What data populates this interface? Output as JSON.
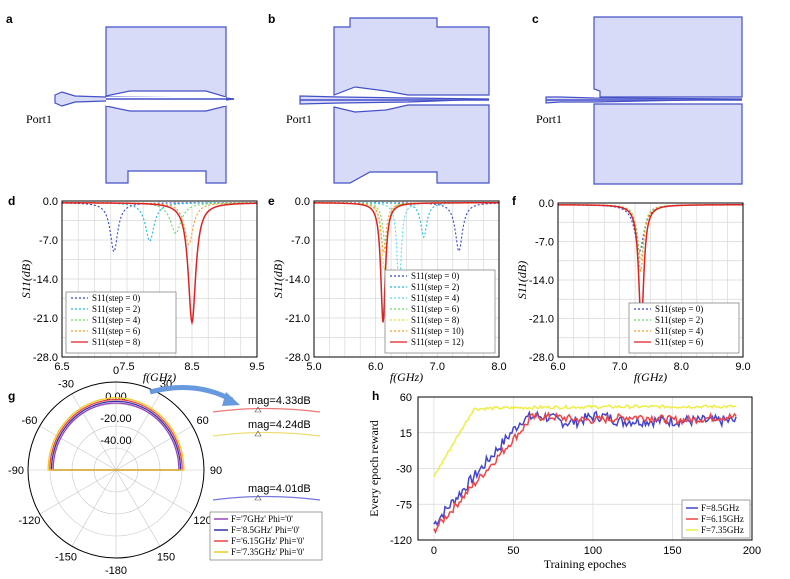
{
  "panels": {
    "a": "a",
    "b": "b",
    "c": "c",
    "d": "d",
    "e": "e",
    "f": "f",
    "g": "g",
    "h": "h"
  },
  "port_label": "Port1",
  "chart_data": [
    {
      "id": "d",
      "type": "line",
      "xlabel": "f(GHz)",
      "ylabel": "S11(dB)",
      "xlim": [
        6.5,
        9.5
      ],
      "ylim": [
        -28.0,
        0.0
      ],
      "xticks": [
        "6.5",
        "7.5",
        "8.5",
        "9.5"
      ],
      "yticks": [
        "0.0",
        "-7.0",
        "-14.0",
        "-21.0",
        "-28.0"
      ],
      "legend_position": "bottom-left",
      "series": [
        {
          "name": "S11(step = 0)",
          "color": "#3344cc",
          "dash": "2,2",
          "f0": 7.3,
          "depth": -8.8,
          "width": 0.07
        },
        {
          "name": "S11(step = 2)",
          "color": "#22bbdd",
          "dash": "2,2",
          "f0": 7.85,
          "depth": -6.9,
          "width": 0.08
        },
        {
          "name": "S11(step = 4)",
          "color": "#66dd66",
          "dash": "2,2",
          "f0": 8.25,
          "depth": -5.5,
          "width": 0.1
        },
        {
          "name": "S11(step = 6)",
          "color": "#ff9922",
          "dash": "2,2",
          "f0": 8.45,
          "depth": -7.5,
          "width": 0.08
        },
        {
          "name": "S11(step = 8)",
          "color": "#dd2222",
          "dash": "",
          "f0": 8.5,
          "depth": -21.5,
          "width": 0.07
        }
      ]
    },
    {
      "id": "e",
      "type": "line",
      "xlabel": "f(GHz)",
      "ylabel": "S11(dB)",
      "xlim": [
        5.0,
        8.0
      ],
      "ylim": [
        -28.0,
        0.0
      ],
      "xticks": [
        "5.0",
        "6.0",
        "7.0",
        "8.0"
      ],
      "yticks": [
        "0.0",
        "-7.0",
        "-14.0",
        "-21.0",
        "-28.0"
      ],
      "legend_position": "bottom-right",
      "series": [
        {
          "name": "S11(step = 0)",
          "color": "#3344cc",
          "dash": "2,2",
          "f0": 7.35,
          "depth": -8.7,
          "width": 0.07
        },
        {
          "name": "S11(step = 2)",
          "color": "#22bbdd",
          "dash": "2,2",
          "f0": 6.78,
          "depth": -6.2,
          "width": 0.06
        },
        {
          "name": "S11(step = 4)",
          "color": "#55ddee",
          "dash": "2,2",
          "f0": 6.38,
          "depth": -16.0,
          "width": 0.04
        },
        {
          "name": "S11(step = 6)",
          "color": "#66dd66",
          "dash": "2,2",
          "f0": 6.16,
          "depth": -8.0,
          "width": 0.05
        },
        {
          "name": "S11(step = 8)",
          "color": "#dddd33",
          "dash": "2,2",
          "f0": 6.14,
          "depth": -12.0,
          "width": 0.05
        },
        {
          "name": "S11(step = 10)",
          "color": "#ff9922",
          "dash": "2,2",
          "f0": 6.13,
          "depth": -9.0,
          "width": 0.05
        },
        {
          "name": "S11(step = 12)",
          "color": "#dd2222",
          "dash": "",
          "f0": 6.12,
          "depth": -21.5,
          "width": 0.045
        }
      ]
    },
    {
      "id": "f",
      "type": "line",
      "xlabel": "f(GHz)",
      "ylabel": "S11(dB)",
      "xlim": [
        6.0,
        9.0
      ],
      "ylim": [
        -28.0,
        0.0
      ],
      "xticks": [
        "6.0",
        "7.0",
        "8.0",
        "9.0"
      ],
      "yticks": [
        "0.0",
        "-7.0",
        "-14.0",
        "-21.0",
        "-28.0"
      ],
      "legend_position": "bottom-right",
      "series": [
        {
          "name": "S11(step = 0)",
          "color": "#3344cc",
          "dash": "2,2",
          "f0": 7.32,
          "depth": -8.5,
          "width": 0.09
        },
        {
          "name": "S11(step = 2)",
          "color": "#66dd66",
          "dash": "2,2",
          "f0": 7.34,
          "depth": -10.0,
          "width": 0.06
        },
        {
          "name": "S11(step = 4)",
          "color": "#ff9922",
          "dash": "2,2",
          "f0": 7.34,
          "depth": -12.0,
          "width": 0.06
        },
        {
          "name": "S11(step = 6)",
          "color": "#dd2222",
          "dash": "",
          "f0": 7.35,
          "depth": -22.0,
          "width": 0.05
        }
      ]
    },
    {
      "id": "g",
      "type": "polar",
      "radial_ticks": [
        "0.00",
        "-20.00",
        "-40.00"
      ],
      "angle_labels": [
        "0",
        "30",
        "60",
        "90",
        "120",
        "150",
        "-180",
        "-150",
        "-120",
        "-90",
        "-60",
        "-30"
      ],
      "legend_position": "bottom-right",
      "magnitudes": [
        "mag=4.33dB",
        "mag=4.24dB",
        "mag=4.01dB"
      ],
      "series": [
        {
          "name": "F='7GHz' Phi='0'",
          "color": "#9944bb",
          "peak_db": 4.0
        },
        {
          "name": "F='8.5GHz' Phi='0'",
          "color": "#3333aa",
          "peak_db": 4.01
        },
        {
          "name": "F='6.15GHz' Phi='0'",
          "color": "#ee4444",
          "peak_db": 4.33
        },
        {
          "name": "F='7.35GHz' Phi='0'",
          "color": "#eecc22",
          "peak_db": 4.24
        }
      ]
    },
    {
      "id": "h",
      "type": "line",
      "xlabel": "Training epoches",
      "ylabel": "Every epoch reward",
      "xlim": [
        -10,
        200
      ],
      "ylim": [
        -120,
        60
      ],
      "xticks": [
        "0",
        "50",
        "100",
        "150",
        "200"
      ],
      "yticks": [
        "60",
        "15",
        "-30",
        "-75",
        "-120"
      ],
      "legend_position": "bottom-right",
      "series": [
        {
          "name": "F=8.5GHz",
          "color": "#4444cc"
        },
        {
          "name": "F=6.15GHz",
          "color": "#ee4444"
        },
        {
          "name": "F=7.35GHz",
          "color": "#eeee44"
        }
      ]
    }
  ]
}
